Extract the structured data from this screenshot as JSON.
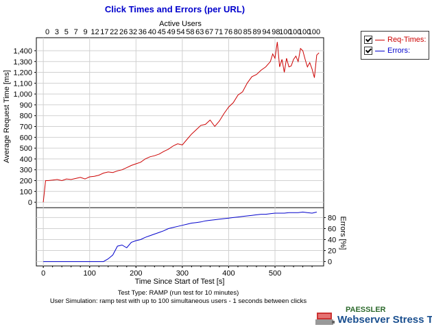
{
  "chart_data": {
    "type": "line",
    "title": "Click Times and Errors (per URL)",
    "top_axis_label": "Active Users",
    "top_ticks": [
      "0",
      "3",
      "5",
      "7",
      "9",
      "12",
      "17",
      "22",
      "26",
      "32",
      "36",
      "40",
      "45",
      "49",
      "54",
      "58",
      "63",
      "67",
      "71",
      "76",
      "80",
      "85",
      "89",
      "94",
      "98",
      "100",
      "100",
      "100",
      "100"
    ],
    "xlabel": "Time Since Start of Test [s]",
    "ylabel": "Average Request Time [ms]",
    "y2label": "Errors [%]",
    "xlim": [
      -15,
      605
    ],
    "ylim": [
      -50,
      1520
    ],
    "y2lim": [
      -8,
      98
    ],
    "x_ticks": [
      0,
      100,
      200,
      300,
      400,
      500
    ],
    "y_ticks": [
      0,
      100,
      200,
      300,
      400,
      500,
      600,
      700,
      800,
      900,
      1000,
      1100,
      1200,
      1300,
      1400
    ],
    "y_tick_labels": [
      "0",
      "100",
      "200",
      "300",
      "400",
      "500",
      "600",
      "700",
      "800",
      "900",
      "1,000",
      "1,100",
      "1,200",
      "1,300",
      "1,400"
    ],
    "y2_ticks": [
      0,
      20,
      40,
      60,
      80
    ],
    "grid": true,
    "legend_position": "top-right",
    "series": [
      {
        "name": "Req-Times:",
        "color": "#cc0000",
        "x": [
          0,
          5,
          10,
          20,
          30,
          40,
          50,
          60,
          70,
          80,
          90,
          100,
          110,
          120,
          130,
          140,
          150,
          160,
          170,
          180,
          190,
          200,
          210,
          220,
          230,
          240,
          250,
          260,
          270,
          280,
          290,
          300,
          310,
          320,
          330,
          340,
          350,
          360,
          370,
          380,
          390,
          400,
          410,
          420,
          430,
          440,
          450,
          460,
          470,
          480,
          490,
          495,
          500,
          505,
          510,
          515,
          520,
          525,
          530,
          535,
          540,
          545,
          550,
          555,
          560,
          565,
          570,
          575,
          580,
          585,
          590,
          595
        ],
        "values": [
          0,
          200,
          200,
          205,
          210,
          200,
          215,
          210,
          220,
          230,
          215,
          235,
          240,
          250,
          270,
          280,
          275,
          290,
          300,
          320,
          340,
          355,
          370,
          400,
          420,
          430,
          445,
          470,
          490,
          520,
          540,
          530,
          580,
          630,
          670,
          710,
          720,
          760,
          700,
          750,
          820,
          880,
          920,
          990,
          1020,
          1100,
          1160,
          1180,
          1220,
          1250,
          1300,
          1370,
          1330,
          1480,
          1250,
          1320,
          1200,
          1330,
          1250,
          1260,
          1320,
          1350,
          1300,
          1420,
          1400,
          1320,
          1250,
          1290,
          1230,
          1150,
          1360,
          1380
        ]
      },
      {
        "name": "Errors:",
        "color": "#0000cc",
        "x": [
          0,
          10,
          20,
          30,
          40,
          50,
          60,
          70,
          80,
          90,
          100,
          110,
          120,
          130,
          140,
          150,
          160,
          170,
          180,
          190,
          200,
          210,
          220,
          230,
          240,
          250,
          260,
          270,
          280,
          290,
          300,
          310,
          320,
          330,
          340,
          350,
          360,
          370,
          380,
          390,
          400,
          410,
          420,
          430,
          440,
          450,
          460,
          470,
          480,
          490,
          500,
          510,
          520,
          530,
          540,
          550,
          560,
          570,
          580,
          590
        ],
        "values": [
          0,
          0,
          0,
          0,
          0,
          0,
          0,
          0,
          0,
          0,
          0,
          0,
          0,
          0,
          5,
          12,
          28,
          30,
          25,
          35,
          38,
          40,
          44,
          47,
          50,
          53,
          56,
          60,
          62,
          64,
          66,
          68,
          70,
          71,
          72,
          74,
          75,
          76,
          77,
          78,
          79,
          80,
          81,
          82,
          83,
          84,
          85,
          86,
          86,
          87,
          88,
          88,
          88,
          89,
          89,
          89,
          90,
          89,
          88,
          90
        ]
      }
    ],
    "subtitle_lines": [
      "Test Type: RAMP (run test for 10 minutes)",
      "User Simulation: ramp test with up to 100 simultaneous users - 1 seconds between clicks"
    ]
  },
  "brand": {
    "company": "PAESSLER",
    "product": "Webserver Stress Tool"
  },
  "colors": {
    "title": "#0000cc",
    "req_times": "#cc0000",
    "errors": "#0000cc",
    "grid": "#d0d0d0"
  }
}
